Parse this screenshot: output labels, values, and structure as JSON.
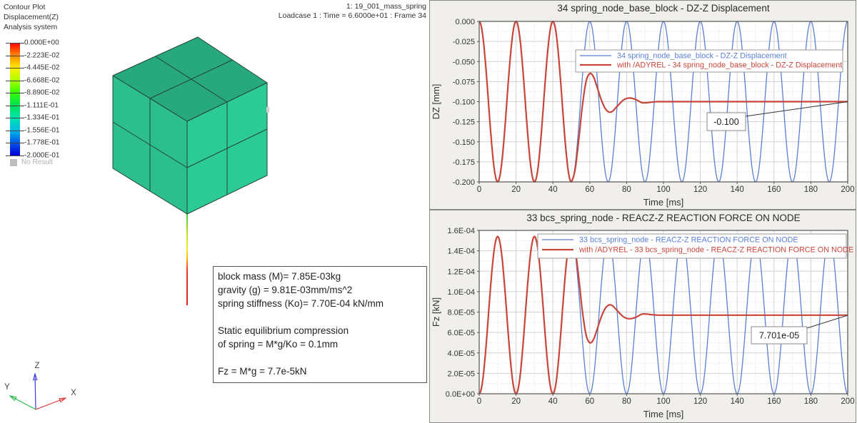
{
  "viewer": {
    "contour_legend": {
      "title_lines": [
        "Contour Plot",
        "Displacement(Z)",
        "Analysis system"
      ],
      "values": [
        "0.000E+00",
        "-2.223E-02",
        "-4.445E-02",
        "-6.668E-02",
        "-8.890E-02",
        "-1.111E-01",
        "-1.334E-01",
        "-1.556E-01",
        "-1.778E-01",
        "-2.000E-01"
      ],
      "no_result_label": "No Result",
      "colorbar_colors": [
        "#ff0000",
        "#ff8800",
        "#ffee00",
        "#aaff00",
        "#33ff00",
        "#00e055",
        "#00e5b0",
        "#00b8e8",
        "#0055e8",
        "#0000d8"
      ]
    },
    "header": {
      "line1": "1: 19_001_mass_spring",
      "line2": "Loadcase 1 : Time = 6.6000e+01 : Frame 34"
    },
    "model": {
      "face_colors": {
        "top": "#27a87d",
        "left": "#2cbf8d",
        "right": "#2ccb95"
      },
      "edge_color": "#25433a"
    },
    "info_box": {
      "lines": [
        "block mass (M)= 7.85E-03kg",
        "gravity (g) = 9.81E-03mm/ms^2",
        "spring stiffness (Ko)= 7.70E-04 kN/mm",
        "",
        "Static equilibrium compression",
        "of spring = M*g/Ko = 0.1mm",
        "",
        "Fz = M*g = 7.7e-5kN"
      ]
    },
    "triad": {
      "x_label": "X",
      "y_label": "Y",
      "z_label": "Z",
      "x_color": "#e03030",
      "y_color": "#28b848",
      "z_color": "#3a3ae8"
    }
  },
  "chart_data": [
    {
      "type": "line",
      "title": "34 spring_node_base_block - DZ-Z Displacement",
      "xlabel": "Time [ms]",
      "ylabel": "DZ [mm]",
      "xlim": [
        0,
        200
      ],
      "ylim": [
        -0.2,
        0
      ],
      "xticks": [
        0,
        20,
        40,
        60,
        80,
        100,
        120,
        140,
        160,
        180,
        200
      ],
      "ytick_values": [
        0,
        -0.025,
        -0.05,
        -0.075,
        -0.1,
        -0.125,
        -0.15,
        -0.175,
        -0.2
      ],
      "ytick_labels": [
        "0.000",
        "-0.025",
        "-0.050",
        "-0.075",
        "-0.100",
        "-0.125",
        "-0.150",
        "-0.175",
        "-0.200"
      ],
      "grid": "major solid + minor dotted",
      "legend_position": "upper center",
      "series": [
        {
          "name": "34 spring_node_base_block - DZ-Z Displacement",
          "color": "#5b7fd4",
          "width": 1.3,
          "wave": {
            "base": 0,
            "amp": -0.2,
            "period_ms": 20,
            "t_start": 0,
            "t_end": 200
          }
        },
        {
          "name": "with /ADYREL - 34 spring_node_base_block - DZ-Z Displacement",
          "color": "#c8453a",
          "width": 2.2,
          "wave": {
            "base": 0,
            "amp": -0.2,
            "period_ms": 20,
            "t_start": 0,
            "t_end": 50
          },
          "tail_points": [
            [
              50,
              -0.2
            ],
            [
              52,
              -0.185
            ],
            [
              54,
              -0.148
            ],
            [
              56,
              -0.105
            ],
            [
              58,
              -0.075
            ],
            [
              60,
              -0.065
            ],
            [
              62,
              -0.069
            ],
            [
              64,
              -0.082
            ],
            [
              66,
              -0.096
            ],
            [
              68,
              -0.107
            ],
            [
              70,
              -0.1125
            ],
            [
              72,
              -0.1125
            ],
            [
              74,
              -0.108
            ],
            [
              76,
              -0.103
            ],
            [
              78,
              -0.0985
            ],
            [
              80,
              -0.096
            ],
            [
              82,
              -0.0955
            ],
            [
              84,
              -0.0965
            ],
            [
              86,
              -0.0985
            ],
            [
              88,
              -0.101
            ],
            [
              90,
              -0.1015
            ],
            [
              92,
              -0.101
            ],
            [
              94,
              -0.1005
            ],
            [
              97,
              -0.1
            ],
            [
              110,
              -0.1
            ],
            [
              200,
              -0.1
            ]
          ],
          "settle_value": -0.1
        }
      ],
      "annotation": {
        "text": "-0.100",
        "value": -0.1
      }
    },
    {
      "type": "line",
      "title": "33 bcs_spring_node - REACZ-Z REACTION FORCE ON NODE",
      "xlabel": "Time [ms]",
      "ylabel": "Fz [kN]",
      "xlim": [
        0,
        200
      ],
      "ylim": [
        0,
        0.00016
      ],
      "xticks": [
        0,
        20,
        40,
        60,
        80,
        100,
        120,
        140,
        160,
        180,
        200
      ],
      "ytick_values": [
        0.00016,
        0.00014,
        0.00012,
        0.0001,
        8e-05,
        6e-05,
        4e-05,
        2e-05,
        0
      ],
      "ytick_labels": [
        "1.6E-04",
        "1.4E-04",
        "1.2E-04",
        "1.0E-04",
        "8.0E-05",
        "6.0E-05",
        "4.0E-05",
        "2.0E-05",
        "0.0E+00"
      ],
      "grid": "major solid + minor dotted",
      "legend_position": "upper center",
      "series": [
        {
          "name": "33 bcs_spring_node - REACZ-Z REACTION FORCE ON NODE",
          "color": "#5b7fd4",
          "width": 1.3,
          "wave": {
            "base": 0,
            "amp": 0.000154,
            "period_ms": 20,
            "t_start": 0,
            "t_end": 200
          }
        },
        {
          "name": "with /ADYREL - 33 bcs_spring_node - REACZ-Z REACTION FORCE ON NODE",
          "color": "#c8453a",
          "width": 2.2,
          "wave": {
            "base": 0,
            "amp": 0.000154,
            "period_ms": 20,
            "t_start": 0,
            "t_end": 50
          },
          "tail_points": [
            [
              50,
              0.000154
            ],
            [
              52,
              0.0001424
            ],
            [
              54,
              0.0001139
            ],
            [
              56,
              8.09e-05
            ],
            [
              58,
              5.78e-05
            ],
            [
              60,
              5e-05
            ],
            [
              62,
              5.31e-05
            ],
            [
              64,
              6.31e-05
            ],
            [
              66,
              7.39e-05
            ],
            [
              68,
              8.24e-05
            ],
            [
              70,
              8.66e-05
            ],
            [
              72,
              8.66e-05
            ],
            [
              74,
              8.32e-05
            ],
            [
              76,
              7.93e-05
            ],
            [
              78,
              7.58e-05
            ],
            [
              80,
              7.39e-05
            ],
            [
              82,
              7.35e-05
            ],
            [
              84,
              7.43e-05
            ],
            [
              86,
              7.58e-05
            ],
            [
              88,
              7.78e-05
            ],
            [
              90,
              7.82e-05
            ],
            [
              92,
              7.78e-05
            ],
            [
              94,
              7.74e-05
            ],
            [
              97,
              7.701e-05
            ],
            [
              110,
              7.701e-05
            ],
            [
              200,
              7.701e-05
            ]
          ],
          "settle_value": 7.701e-05
        }
      ],
      "annotation": {
        "text": "7.701e-05",
        "value": 7.701e-05
      }
    }
  ]
}
